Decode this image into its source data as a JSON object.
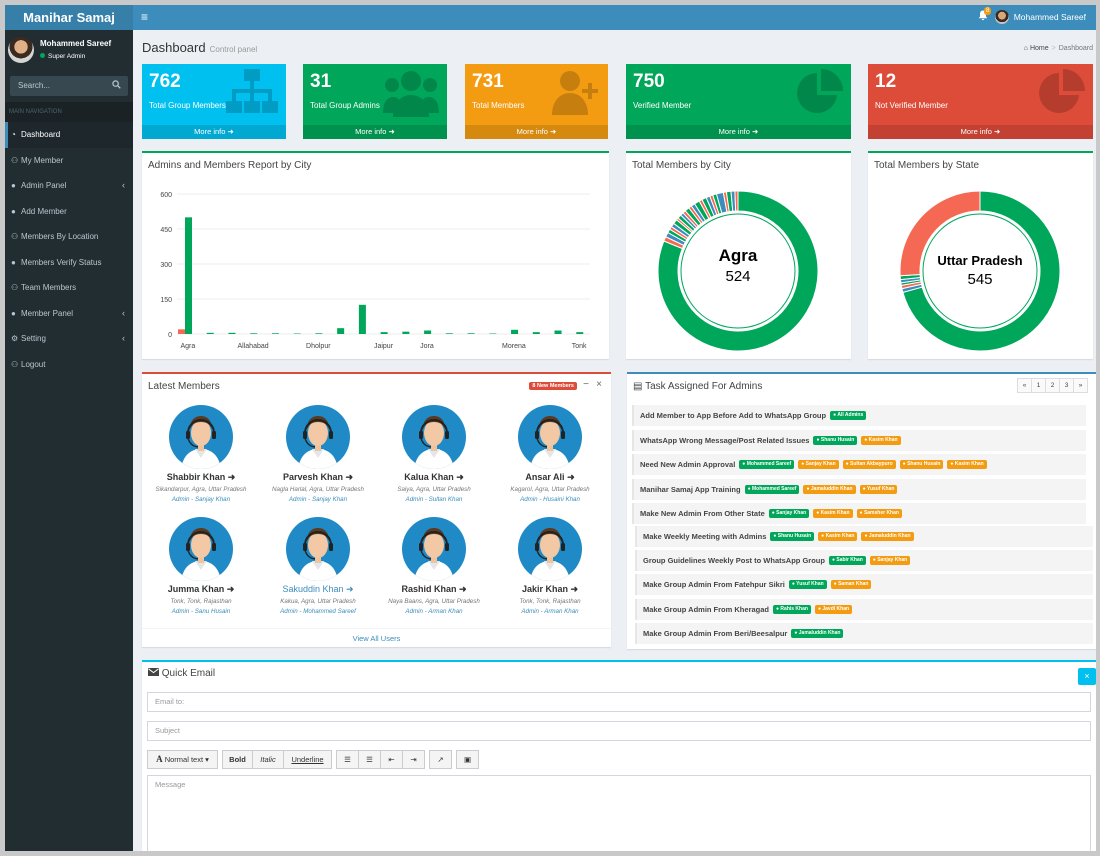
{
  "app": {
    "logo": "Manihar Samaj"
  },
  "header": {
    "menu_icon": "≡",
    "notif_count": "8",
    "user_name": "Mohammed Sareef"
  },
  "sidebar": {
    "user_name": "Mohammed Sareef",
    "user_role": "Super Admin",
    "search_placeholder": "Search...",
    "nav_header": "MAIN NAVIGATION",
    "items": [
      {
        "label": "Dashboard"
      },
      {
        "label": "My Member"
      },
      {
        "label": "Admin Panel"
      },
      {
        "label": "Add Member"
      },
      {
        "label": "Members By Location"
      },
      {
        "label": "Members Verify Status"
      },
      {
        "label": "Team Members"
      },
      {
        "label": "Member Panel"
      },
      {
        "label": "Setting"
      },
      {
        "label": "Logout"
      }
    ]
  },
  "page": {
    "title": "Dashboard",
    "subtitle": "Control panel",
    "crumb_home": "Home",
    "crumb_current": "Dashboard"
  },
  "stats": [
    {
      "value": "762",
      "label": "Total Group Members",
      "more": "More info",
      "color": "#00c0ef"
    },
    {
      "value": "31",
      "label": "Total Group Admins",
      "more": "More info",
      "color": "#00a65a"
    },
    {
      "value": "731",
      "label": "Total Members",
      "more": "More info",
      "color": "#f39c12"
    },
    {
      "value": "750",
      "label": "Verified Member",
      "more": "More info",
      "color": "#00a65a"
    },
    {
      "value": "12",
      "label": "Not Verified Member",
      "more": "More info",
      "color": "#dd4b39"
    }
  ],
  "report": {
    "title": "Admins and Members Report by City"
  },
  "city_donut": {
    "title": "Total Members by City",
    "center_label": "Agra",
    "center_value": "524"
  },
  "state_donut": {
    "title": "Total Members by State",
    "center_label": "Uttar Pradesh",
    "center_value": "545"
  },
  "chart_data": {
    "type": "bar",
    "title": "Admins and Members Report by City",
    "ylim": [
      0,
      600
    ],
    "yticks": [
      "600",
      "450",
      "300",
      "150",
      "0"
    ],
    "xtick_labels": [
      "Agra",
      "Allahabad",
      "Dholpur",
      "Jaipur",
      "Jora",
      "Morena",
      "Tonk"
    ],
    "series": [
      {
        "name": "Admins",
        "color": "#f56954",
        "values": [
          20,
          0,
          0,
          0,
          0,
          0,
          0,
          0,
          0,
          0,
          0,
          0,
          0,
          0,
          0,
          0,
          0,
          0,
          0
        ]
      },
      {
        "name": "Members",
        "color": "#00a65a",
        "values": [
          500,
          5,
          5,
          3,
          3,
          2,
          3,
          25,
          125,
          8,
          10,
          15,
          3,
          3,
          2,
          18,
          8,
          15,
          8
        ]
      }
    ]
  },
  "members": {
    "title": "Latest Members",
    "badge": "8 New Members",
    "view_all": "View All Users",
    "list": [
      {
        "name": "Shabbir Khan",
        "location": "Sikandarpur, Agra, Uttar Pradesh",
        "admin": "Admin - Sanjay Khan"
      },
      {
        "name": "Parvesh Khan",
        "location": "Nagla Harlal, Agra, Uttar Pradesh",
        "admin": "Admin - Sanjay Khan"
      },
      {
        "name": "Kalua Khan",
        "location": "Saiya, Agra, Uttar Pradesh",
        "admin": "Admin - Sultan Khan"
      },
      {
        "name": "Ansar Ali",
        "location": "Kagarol, Agra, Uttar Pradesh",
        "admin": "Admin - Husaini Khan"
      },
      {
        "name": "Jumma Khan",
        "location": "Tonk, Tonk, Rajasthan",
        "admin": "Admin - Sanu Husain"
      },
      {
        "name": "Sakuddin Khan",
        "location": "Kakua, Agra, Uttar Pradesh",
        "admin": "Admin - Mohammed Sareef"
      },
      {
        "name": "Rashid Khan",
        "location": "Naya Baans, Agra, Uttar Pradesh",
        "admin": "Admin - Arman Khan"
      },
      {
        "name": "Jakir Khan",
        "location": "Tonk, Tonk, Rajasthan",
        "admin": "Admin - Arman Khan"
      }
    ]
  },
  "tasks": {
    "title": "Task Assigned For Admins",
    "pages": [
      "«",
      "1",
      "2",
      "3",
      "»"
    ],
    "list": [
      {
        "text": "Add Member to App Before Add to WhatsApp Group",
        "tags": [
          {
            "t": "All Admins",
            "c": "g"
          }
        ]
      },
      {
        "text": "WhatsApp Wrong Message/Post Related Issues",
        "tags": [
          {
            "t": "Shanu Husain",
            "c": "g"
          },
          {
            "t": "Kasim Khan",
            "c": "o"
          }
        ]
      },
      {
        "text": "Need New Admin Approval",
        "tags": [
          {
            "t": "Mohammed Sareef",
            "c": "g"
          },
          {
            "t": "Sanjay Khan",
            "c": "o"
          },
          {
            "t": "Sultan Akbaypuro",
            "c": "o"
          },
          {
            "t": "Shanu Husain",
            "c": "o"
          },
          {
            "t": "Kasim Khan",
            "c": "o"
          }
        ]
      },
      {
        "text": "Manihar Samaj App Training",
        "tags": [
          {
            "t": "Mohammed Sareef",
            "c": "g"
          },
          {
            "t": "Jamaluddin Khan",
            "c": "o"
          },
          {
            "t": "Yusuf Khan",
            "c": "o"
          }
        ]
      },
      {
        "text": "Make New Admin From Other State",
        "tags": [
          {
            "t": "Sanjay Khan",
            "c": "g"
          },
          {
            "t": "Kasim Khan",
            "c": "o"
          },
          {
            "t": "Samsher Khan",
            "c": "o"
          }
        ]
      },
      {
        "text": "Make Weekly Meeting with Admins",
        "tags": [
          {
            "t": "Shanu Husain",
            "c": "g"
          },
          {
            "t": "Kasim Khan",
            "c": "o"
          },
          {
            "t": "Jamaluddin Khan",
            "c": "o"
          }
        ]
      },
      {
        "text": "Group Guidelines Weekly Post to WhatsApp Group",
        "tags": [
          {
            "t": "Sabir Khan",
            "c": "g"
          },
          {
            "t": "Sanjay Khan",
            "c": "o"
          }
        ]
      },
      {
        "text": "Make Group Admin From Fatehpur Sikri",
        "tags": [
          {
            "t": "Yusuf Khan",
            "c": "g"
          },
          {
            "t": "Saman Khan",
            "c": "o"
          }
        ]
      },
      {
        "text": "Make Group Admin From Kheragad",
        "tags": [
          {
            "t": "Rahis Khan",
            "c": "g"
          },
          {
            "t": "Javdi Khan",
            "c": "o"
          }
        ]
      },
      {
        "text": "Make Group Admin From Beri/Beesalpur",
        "tags": [
          {
            "t": "Jamaluddin Khan",
            "c": "g"
          }
        ]
      }
    ]
  },
  "email": {
    "title": "Quick Email",
    "to_placeholder": "Email to:",
    "subject_placeholder": "Subject",
    "message_placeholder": "Message",
    "toolbar": {
      "normal_text": "Normal text",
      "bold": "Bold",
      "italic": "Italic",
      "underline": "Underline"
    }
  }
}
